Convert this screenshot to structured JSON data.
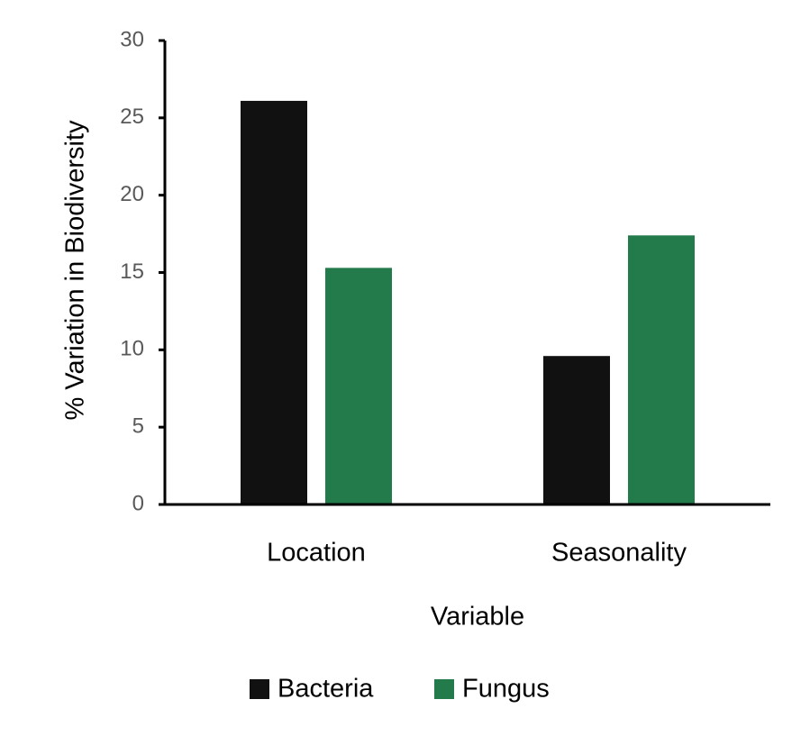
{
  "chart_data": {
    "type": "bar",
    "y_label": "% Variation in Biodiversity",
    "x_label": "Variable",
    "categories": [
      "Location",
      "Seasonality"
    ],
    "series": [
      {
        "name": "Bacteria",
        "color": "#111111",
        "values": [
          26.1,
          9.6
        ]
      },
      {
        "name": "Fungus",
        "color": "#237a4a",
        "values": [
          15.3,
          17.4
        ]
      }
    ],
    "ylim": [
      0,
      30
    ],
    "yticks": [
      0,
      5,
      10,
      15,
      20,
      25,
      30
    ]
  }
}
